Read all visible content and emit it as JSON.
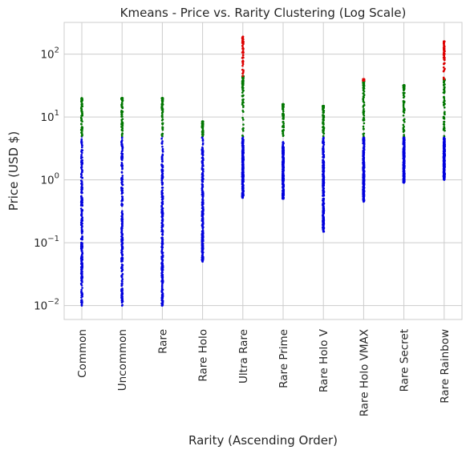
{
  "chart_data": {
    "type": "scatter",
    "title": "Kmeans - Price vs. Rarity Clustering (Log Scale)",
    "xlabel": "Rarity (Ascending Order)",
    "ylabel": "Price (USD $)",
    "y_scale": "log",
    "ylim": [
      0.006,
      320
    ],
    "y_ticks": [
      {
        "value": 0.01,
        "base": "10",
        "exp": "−2"
      },
      {
        "value": 0.1,
        "base": "10",
        "exp": "−1"
      },
      {
        "value": 1,
        "base": "10",
        "exp": "0"
      },
      {
        "value": 10,
        "base": "10",
        "exp": "1"
      },
      {
        "value": 100,
        "base": "10",
        "exp": "2"
      }
    ],
    "grid": true,
    "categories": [
      "Common",
      "Uncommon",
      "Rare",
      "Rare Holo",
      "Ultra Rare",
      "Rare Prime",
      "Rare Holo V",
      "Rare Holo VMAX",
      "Rare Secret",
      "Rare Rainbow"
    ],
    "cluster_colors": [
      "#0000dd",
      "#007700",
      "#dd0000"
    ],
    "ranges": [
      {
        "rarity": "Common",
        "blue": [
          0.01,
          4.9
        ],
        "green": [
          5,
          20
        ],
        "red": null
      },
      {
        "rarity": "Uncommon",
        "blue": [
          0.01,
          4.9
        ],
        "green": [
          5,
          20
        ],
        "red": null
      },
      {
        "rarity": "Rare",
        "blue": [
          0.01,
          4.9
        ],
        "green": [
          5,
          20
        ],
        "red": null
      },
      {
        "rarity": "Rare Holo",
        "blue": [
          0.05,
          4.9
        ],
        "green": [
          5,
          8.5
        ],
        "red": null
      },
      {
        "rarity": "Ultra Rare",
        "blue": [
          0.52,
          4.9
        ],
        "green": [
          5,
          45
        ],
        "red": [
          45,
          190
        ]
      },
      {
        "rarity": "Rare Prime",
        "blue": [
          0.5,
          4.0
        ],
        "green": [
          5,
          16
        ],
        "red": null
      },
      {
        "rarity": "Rare Holo V",
        "blue": [
          0.15,
          4.9
        ],
        "green": [
          5,
          15
        ],
        "red": null
      },
      {
        "rarity": "Rare Holo VMAX",
        "blue": [
          0.45,
          4.9
        ],
        "green": [
          5,
          38
        ],
        "red": [
          38,
          40
        ]
      },
      {
        "rarity": "Rare Secret",
        "blue": [
          0.9,
          4.9
        ],
        "green": [
          5,
          32
        ],
        "red": null
      },
      {
        "rarity": "Rare Rainbow",
        "blue": [
          1.0,
          4.9
        ],
        "green": [
          5,
          40
        ],
        "red": [
          40,
          160
        ]
      }
    ]
  }
}
